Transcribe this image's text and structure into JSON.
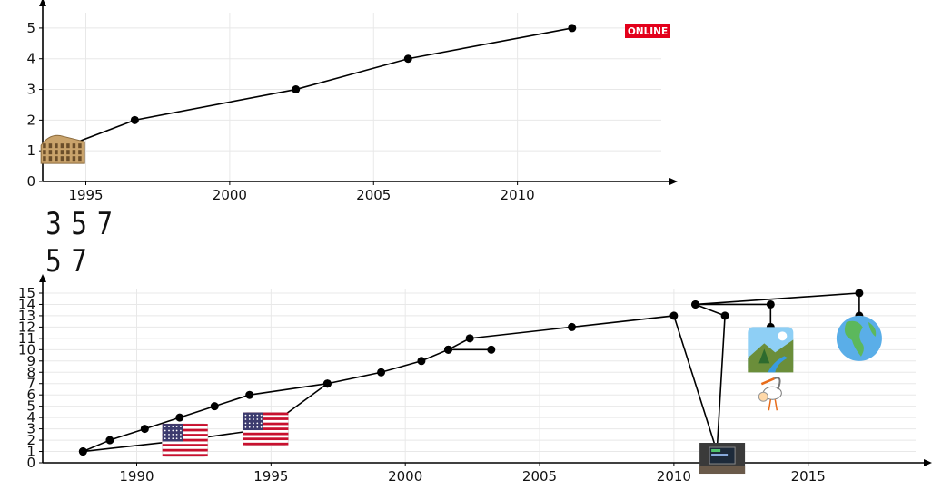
{
  "summary_lines": [
    "3 5 7",
    "5 7"
  ],
  "badge": {
    "text": "ONLINE",
    "bg": "#e3001b",
    "fg": "#ffffff"
  },
  "chart_data": [
    {
      "type": "line",
      "title": "",
      "xlabel": "",
      "ylabel": "",
      "grid": true,
      "xlim": [
        1993.5,
        2015
      ],
      "ylim": [
        0,
        5.5
      ],
      "xticks": [
        1995,
        2000,
        2005,
        2010
      ],
      "yticks": [
        0,
        1,
        2,
        3,
        4,
        5
      ],
      "series": [
        {
          "x": [
            1993.9,
            1996.7,
            2002.3,
            2006.2,
            2011.9
          ],
          "y": [
            1,
            2,
            3,
            4,
            5
          ]
        }
      ],
      "icons": [
        {
          "name": "colosseum-icon",
          "x": 1994.2,
          "y": 1
        }
      ]
    },
    {
      "type": "line",
      "title": "",
      "xlabel": "",
      "ylabel": "",
      "grid": true,
      "xlim": [
        1986.5,
        2019
      ],
      "ylim": [
        0,
        15.4
      ],
      "xticks": [
        1990,
        1995,
        2000,
        2005,
        2010,
        2015
      ],
      "yticks": [
        0,
        1,
        2,
        3,
        4,
        5,
        6,
        7,
        8,
        9,
        10,
        11,
        12,
        13,
        14,
        15
      ],
      "series": [
        {
          "x": [
            1988.0,
            1991.8,
            1994.8,
            1997.1,
            1994.2,
            1992.9,
            1991.6,
            1990.3,
            1989.0,
            1988.0
          ],
          "y": [
            1,
            2,
            3,
            7,
            6,
            5,
            4,
            3,
            2,
            1
          ]
        },
        {
          "x": [
            1997.1,
            1999.1,
            2000.6,
            2001.6,
            2003.2
          ],
          "y": [
            7,
            8,
            9,
            10,
            10
          ]
        },
        {
          "x": [
            2001.6,
            2002.4,
            2006.2,
            2010.0,
            2011.6,
            2011.9,
            2010.8,
            2013.6,
            2013.6
          ],
          "y": [
            10,
            11,
            12,
            13,
            1,
            13,
            14,
            14,
            12
          ]
        },
        {
          "x": [
            2010.8,
            2016.9,
            2016.9
          ],
          "y": [
            14,
            15,
            13
          ]
        }
      ],
      "icons": [
        {
          "name": "us-flag-icon",
          "x": 1991.8,
          "y": 2
        },
        {
          "name": "us-flag-icon",
          "x": 1994.8,
          "y": 3
        },
        {
          "name": "laptop-photo-icon",
          "x": 2011.8,
          "y": 0.4
        },
        {
          "name": "stork-baby-icon",
          "x": 2013.6,
          "y": 6
        },
        {
          "name": "national-park-icon",
          "x": 2013.6,
          "y": 10
        },
        {
          "name": "globe-americas-icon",
          "x": 2016.9,
          "y": 11
        }
      ]
    }
  ]
}
